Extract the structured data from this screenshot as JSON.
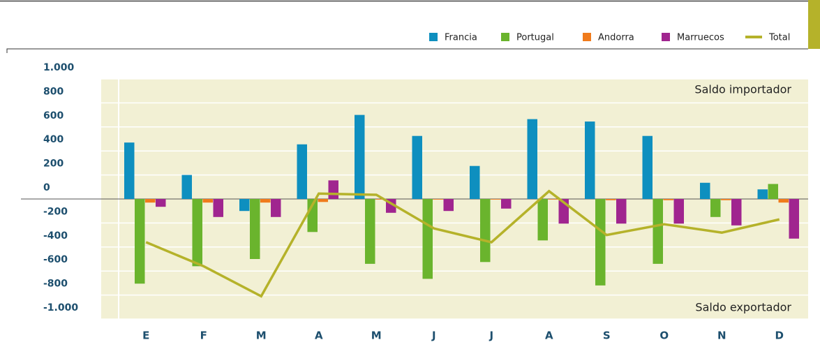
{
  "chart_data": {
    "type": "bar",
    "categories": [
      "E",
      "F",
      "M",
      "A",
      "M",
      "J",
      "J",
      "A",
      "S",
      "O",
      "N",
      "D"
    ],
    "series": [
      {
        "name": "Francia",
        "color": "#0e8fbf",
        "values": [
          470,
          200,
          -100,
          455,
          700,
          525,
          275,
          665,
          645,
          525,
          135,
          80
        ]
      },
      {
        "name": "Portugal",
        "color": "#6ab42d",
        "values": [
          -705,
          -560,
          -500,
          -275,
          -540,
          -665,
          -525,
          -345,
          -720,
          -540,
          -150,
          125
        ]
      },
      {
        "name": "Andorra",
        "color": "#f07b1c",
        "values": [
          -30,
          -30,
          -30,
          -25,
          -5,
          -5,
          -5,
          -5,
          -10,
          -10,
          -10,
          -30
        ]
      },
      {
        "name": "Marruecos",
        "color": "#a0258f",
        "values": [
          -65,
          -150,
          -150,
          155,
          -115,
          -100,
          -80,
          -205,
          -205,
          -205,
          -220,
          -330
        ]
      },
      {
        "name": "Total",
        "type": "line",
        "color": "#b5b22a",
        "values": [
          -360,
          -560,
          -810,
          45,
          35,
          -245,
          -360,
          65,
          -300,
          -210,
          -280,
          -170
        ]
      }
    ],
    "ylim": [
      -1000,
      1000
    ],
    "yticks": [
      {
        "value": -1000,
        "label": "-1.000"
      },
      -800,
      -600,
      -400,
      -200,
      0,
      200,
      400,
      600,
      800,
      {
        "value": 1000,
        "label": "1.000"
      }
    ],
    "grid": true,
    "legend": "top-right",
    "annotations": [
      "Saldo importador",
      "Saldo exportador"
    ]
  }
}
